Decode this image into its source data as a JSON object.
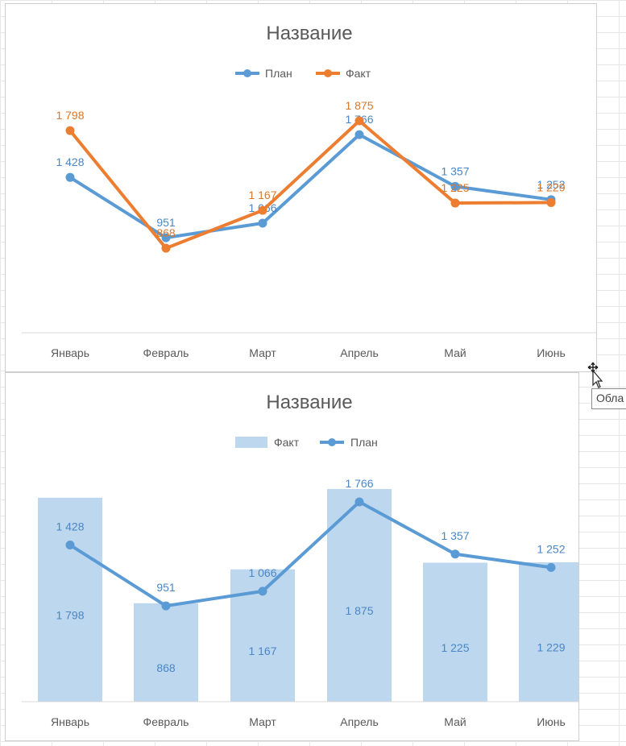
{
  "colors": {
    "plan": "#5b9bd5",
    "fact": "#ed7d31",
    "bar": "#bdd7ee",
    "label_blue": "#4a86c5",
    "axis": "#d9d9d9",
    "text": "#595959"
  },
  "tooltip": {
    "text": "Обла"
  },
  "chart_data": [
    {
      "type": "line",
      "title": "Название",
      "categories": [
        "Январь",
        "Февраль",
        "Март",
        "Апрель",
        "Май",
        "Июнь"
      ],
      "series": [
        {
          "name": "План",
          "values": [
            1428,
            951,
            1066,
            1766,
            1357,
            1252
          ],
          "labels": [
            "1 428",
            "951",
            "1 066",
            "1 766",
            "1 357",
            "1 252"
          ],
          "color": "#5b9bd5"
        },
        {
          "name": "Факт",
          "values": [
            1798,
            868,
            1167,
            1875,
            1225,
            1229
          ],
          "labels": [
            "1 798",
            "868",
            "1 167",
            "1 875",
            "1 225",
            "1 229"
          ],
          "color": "#ed7d31"
        }
      ],
      "ylim": [
        0,
        2200
      ],
      "legend": "top",
      "grid": false
    },
    {
      "type": "bar",
      "title": "Название",
      "categories": [
        "Январь",
        "Февраль",
        "Март",
        "Апрель",
        "Май",
        "Июнь"
      ],
      "series": [
        {
          "name": "Факт",
          "type": "bar",
          "values": [
            1798,
            868,
            1167,
            1875,
            1225,
            1229
          ],
          "labels": [
            "1 798",
            "868",
            "1 167",
            "1 875",
            "1 225",
            "1 229"
          ],
          "color": "#bdd7ee"
        },
        {
          "name": "План",
          "type": "line",
          "values": [
            1428,
            951,
            1066,
            1766,
            1357,
            1252
          ],
          "labels": [
            "1 428",
            "951",
            "1 066",
            "1 766",
            "1 357",
            "1 252"
          ],
          "color": "#5b9bd5"
        }
      ],
      "ylim": [
        0,
        2200
      ],
      "legend": "top",
      "grid": false
    }
  ]
}
